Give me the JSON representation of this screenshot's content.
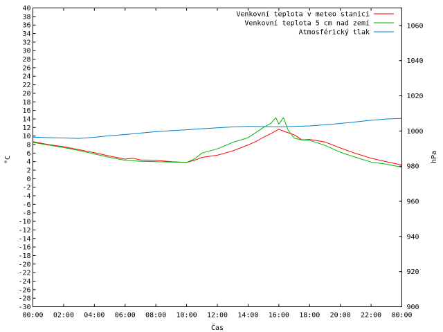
{
  "chart_data": {
    "type": "line",
    "xlabel": "Čas",
    "ylabel_left": "°C",
    "ylabel_right": "hPa",
    "x_ticks": [
      "00:00",
      "02:00",
      "04:00",
      "06:00",
      "08:00",
      "10:00",
      "12:00",
      "14:00",
      "16:00",
      "18:00",
      "20:00",
      "22:00",
      "00:00"
    ],
    "x_range_hours": [
      0,
      24
    ],
    "ylim_left": [
      -30,
      40
    ],
    "ylim_right": [
      900,
      1070
    ],
    "y_ticks_left": [
      40,
      38,
      36,
      34,
      32,
      30,
      28,
      26,
      24,
      22,
      20,
      18,
      16,
      14,
      12,
      10,
      8,
      6,
      4,
      2,
      0,
      -2,
      -4,
      -6,
      -8,
      -10,
      -12,
      -14,
      -16,
      -18,
      -20,
      -22,
      -24,
      -26,
      -28,
      -30
    ],
    "y_ticks_right": [
      1060,
      1040,
      1020,
      1000,
      980,
      960,
      940,
      920,
      900
    ],
    "grid": false,
    "legend_position": "top-right",
    "series": [
      {
        "name": "Venkovní teplota v meteo stanici",
        "axis": "left",
        "color": "#ff0000",
        "x": [
          0,
          1,
          2,
          3,
          4,
          5,
          6,
          6.5,
          7,
          8,
          9,
          10,
          10.5,
          11,
          12,
          13,
          14,
          14.5,
          15,
          15.5,
          16,
          16.5,
          17,
          17.5,
          18,
          19,
          20,
          21,
          22,
          23,
          24
        ],
        "y": [
          8.7,
          8.0,
          7.5,
          6.8,
          6.1,
          5.3,
          4.6,
          4.8,
          4.4,
          4.3,
          4.0,
          3.8,
          4.3,
          5.0,
          5.5,
          6.5,
          7.9,
          8.7,
          9.7,
          10.6,
          11.6,
          10.9,
          10.3,
          9.1,
          9.2,
          8.6,
          7.2,
          5.9,
          4.8,
          4.0,
          3.2
        ]
      },
      {
        "name": "Venkovní teplota 5 cm nad zemí",
        "axis": "left",
        "color": "#00b400",
        "x": [
          0,
          1,
          2,
          3,
          4,
          5,
          6,
          7,
          8,
          9,
          10,
          10.5,
          11,
          12,
          13,
          14,
          14.5,
          15,
          15.5,
          15.8,
          16,
          16.3,
          16.6,
          17,
          17.5,
          18,
          19,
          20,
          21,
          22,
          23,
          24
        ],
        "y": [
          8.5,
          7.9,
          7.3,
          6.6,
          5.8,
          5.0,
          4.3,
          4.1,
          4.0,
          3.9,
          3.8,
          4.6,
          6.0,
          7.0,
          8.5,
          9.6,
          10.8,
          12.0,
          13.0,
          14.3,
          12.8,
          14.3,
          11.4,
          9.5,
          9.1,
          9.0,
          7.8,
          6.2,
          5.0,
          3.9,
          3.4,
          2.7
        ]
      },
      {
        "name": "Atmosférický tlak",
        "axis": "right",
        "color": "#0080c8",
        "x": [
          0,
          1,
          2,
          3,
          4,
          5,
          6,
          7,
          8,
          9,
          10,
          11,
          12,
          13,
          14,
          15,
          16,
          17,
          18,
          19,
          20,
          21,
          22,
          23,
          24
        ],
        "y": [
          996.5,
          996.2,
          996.0,
          995.8,
          996.4,
          997.3,
          998.0,
          998.8,
          999.6,
          1000.2,
          1000.7,
          1001.3,
          1001.8,
          1002.3,
          1002.6,
          1002.5,
          1002.3,
          1002.6,
          1002.9,
          1003.5,
          1004.3,
          1005.2,
          1006.1,
          1006.8,
          1007.2
        ]
      }
    ]
  }
}
